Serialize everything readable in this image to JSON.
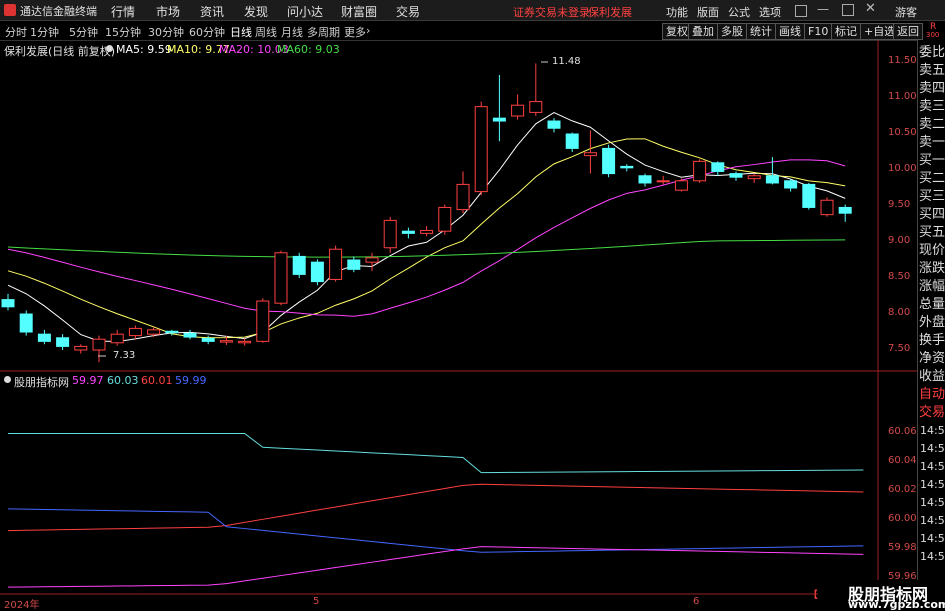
{
  "app": {
    "title": "通达信金融终端",
    "menu": [
      "行情",
      "市场",
      "资讯",
      "发现",
      "问小达",
      "财富圈",
      "交易"
    ],
    "notice": "证券交易未登录",
    "stock_name": "保利发展",
    "right_menu": [
      "功能",
      "版面",
      "公式",
      "选项"
    ],
    "guest": "游客"
  },
  "toolbar": {
    "periods": [
      "分时",
      "1分钟",
      "5分钟",
      "15分钟",
      "30分钟",
      "60分钟",
      "日线",
      "周线",
      "月线",
      "多周期",
      "更多"
    ],
    "active_period": "日线",
    "buttons": [
      "复权",
      "叠加",
      "多股",
      "统计",
      "画线",
      "F10",
      "标记",
      "+自选",
      "返回"
    ]
  },
  "main_chart": {
    "title": "保利发展(日线 前复权)",
    "ma": [
      {
        "label": "MA5: 9.59",
        "color": "#ffffff"
      },
      {
        "label": "MA10: 9.77",
        "color": "#ffff66"
      },
      {
        "label": "MA20: 10.03",
        "color": "#ff44ff"
      },
      {
        "label": "MA60: 9.03",
        "color": "#44dd44"
      }
    ],
    "max_label": "11.48",
    "min_label": "7.33",
    "y_ticks": [
      "11.50",
      "11.00",
      "10.50",
      "10.00",
      "9.50",
      "9.00",
      "8.50",
      "8.00",
      "7.50"
    ]
  },
  "indicator": {
    "title": "股朋指标网",
    "values": [
      {
        "label": "59.97",
        "color": "#ff44ff"
      },
      {
        "label": "60.03",
        "color": "#66dddd"
      },
      {
        "label": "60.01",
        "color": "#ff4040"
      },
      {
        "label": "59.99",
        "color": "#4466ff"
      }
    ],
    "y_ticks": [
      "60.06",
      "60.04",
      "60.02",
      "60.00",
      "59.98",
      "59.96"
    ]
  },
  "x_axis": [
    "2024年",
    "5",
    "6"
  ],
  "right_panel": {
    "items": [
      "委比",
      "卖五",
      "卖四",
      "卖三",
      "卖二",
      "卖一",
      "买一",
      "买二",
      "买三",
      "买四",
      "买五",
      "现价",
      "涨跌",
      "涨幅",
      "总量",
      "外盘",
      "换手",
      "净资",
      "收益",
      "自动",
      "交易"
    ],
    "times": [
      "14:5",
      "14:5",
      "14:5",
      "14:5",
      "14:5",
      "14:5",
      "14:5",
      "14:5"
    ],
    "r_badge": "R",
    "r_num": "300"
  },
  "watermark": {
    "line1": "股朋指标网",
    "line2": "www.7gpzb.com"
  },
  "chart_data": {
    "type": "candlestick",
    "candles": [
      {
        "o": 8.2,
        "c": 8.1,
        "h": 8.28,
        "l": 8.05
      },
      {
        "o": 8.0,
        "c": 7.75,
        "h": 8.05,
        "l": 7.7
      },
      {
        "o": 7.72,
        "c": 7.62,
        "h": 7.78,
        "l": 7.58
      },
      {
        "o": 7.67,
        "c": 7.55,
        "h": 7.72,
        "l": 7.5
      },
      {
        "o": 7.5,
        "c": 7.55,
        "h": 7.58,
        "l": 7.45
      },
      {
        "o": 7.5,
        "c": 7.65,
        "h": 7.7,
        "l": 7.33
      },
      {
        "o": 7.6,
        "c": 7.72,
        "h": 7.78,
        "l": 7.56
      },
      {
        "o": 7.7,
        "c": 7.8,
        "h": 7.84,
        "l": 7.65
      },
      {
        "o": 7.72,
        "c": 7.78,
        "h": 7.82,
        "l": 7.68
      },
      {
        "o": 7.76,
        "c": 7.74,
        "h": 7.78,
        "l": 7.7
      },
      {
        "o": 7.73,
        "c": 7.68,
        "h": 7.78,
        "l": 7.65
      },
      {
        "o": 7.66,
        "c": 7.62,
        "h": 7.7,
        "l": 7.58
      },
      {
        "o": 7.61,
        "c": 7.63,
        "h": 7.7,
        "l": 7.57
      },
      {
        "o": 7.6,
        "c": 7.62,
        "h": 7.66,
        "l": 7.56
      },
      {
        "o": 7.62,
        "c": 8.18,
        "h": 8.22,
        "l": 7.6
      },
      {
        "o": 8.15,
        "c": 8.85,
        "h": 8.88,
        "l": 8.12
      },
      {
        "o": 8.8,
        "c": 8.55,
        "h": 8.85,
        "l": 8.5
      },
      {
        "o": 8.72,
        "c": 8.45,
        "h": 8.76,
        "l": 8.4
      },
      {
        "o": 8.48,
        "c": 8.9,
        "h": 8.95,
        "l": 8.45
      },
      {
        "o": 8.75,
        "c": 8.62,
        "h": 8.8,
        "l": 8.58
      },
      {
        "o": 8.72,
        "c": 8.78,
        "h": 8.85,
        "l": 8.6
      },
      {
        "o": 8.92,
        "c": 9.3,
        "h": 9.35,
        "l": 8.85
      },
      {
        "o": 9.15,
        "c": 9.12,
        "h": 9.2,
        "l": 9.05
      },
      {
        "o": 9.12,
        "c": 9.16,
        "h": 9.22,
        "l": 9.08
      },
      {
        "o": 9.15,
        "c": 9.48,
        "h": 9.52,
        "l": 9.1
      },
      {
        "o": 9.45,
        "c": 9.8,
        "h": 9.98,
        "l": 9.4
      },
      {
        "o": 9.7,
        "c": 10.88,
        "h": 10.95,
        "l": 9.65
      },
      {
        "o": 10.72,
        "c": 10.68,
        "h": 11.32,
        "l": 10.4
      },
      {
        "o": 10.75,
        "c": 10.9,
        "h": 11.05,
        "l": 10.7
      },
      {
        "o": 10.8,
        "c": 10.95,
        "h": 11.48,
        "l": 10.75
      },
      {
        "o": 10.68,
        "c": 10.58,
        "h": 10.72,
        "l": 10.52
      },
      {
        "o": 10.5,
        "c": 10.3,
        "h": 10.52,
        "l": 10.25
      },
      {
        "o": 10.2,
        "c": 10.24,
        "h": 10.55,
        "l": 9.95
      },
      {
        "o": 10.3,
        "c": 9.95,
        "h": 10.35,
        "l": 9.9
      },
      {
        "o": 10.05,
        "c": 10.03,
        "h": 10.08,
        "l": 9.98
      },
      {
        "o": 9.92,
        "c": 9.82,
        "h": 9.95,
        "l": 9.77
      },
      {
        "o": 9.84,
        "c": 9.85,
        "h": 9.92,
        "l": 9.8
      },
      {
        "o": 9.72,
        "c": 9.85,
        "h": 9.88,
        "l": 9.7
      },
      {
        "o": 9.85,
        "c": 10.12,
        "h": 10.15,
        "l": 9.82
      },
      {
        "o": 10.1,
        "c": 9.98,
        "h": 10.12,
        "l": 9.92
      },
      {
        "o": 9.95,
        "c": 9.9,
        "h": 9.98,
        "l": 9.85
      },
      {
        "o": 9.88,
        "c": 9.92,
        "h": 9.95,
        "l": 9.82
      },
      {
        "o": 9.92,
        "c": 9.82,
        "h": 10.18,
        "l": 9.8
      },
      {
        "o": 9.85,
        "c": 9.75,
        "h": 9.88,
        "l": 9.7
      },
      {
        "o": 9.8,
        "c": 9.48,
        "h": 9.82,
        "l": 9.45
      },
      {
        "o": 9.38,
        "c": 9.58,
        "h": 9.62,
        "l": 9.35
      },
      {
        "o": 9.48,
        "c": 9.4,
        "h": 9.52,
        "l": 9.28
      }
    ]
  }
}
